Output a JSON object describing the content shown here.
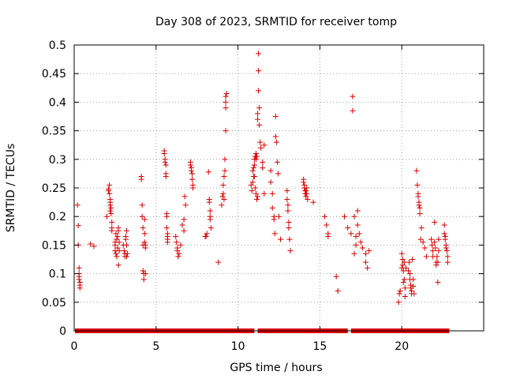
{
  "chart_data": {
    "type": "scatter",
    "title": "Day 308 of 2023, SRMTID for receiver tomp",
    "xlabel": "GPS time / hours",
    "ylabel": "SRMTID / TECUs",
    "xlim": [
      0,
      25
    ],
    "ylim": [
      0,
      0.5
    ],
    "xticks": [
      0,
      5,
      10,
      15,
      20
    ],
    "xtick_labels": [
      "0",
      "5",
      "10",
      "15",
      "20"
    ],
    "yticks": [
      0,
      0.05,
      0.1,
      0.15,
      0.2,
      0.25,
      0.3,
      0.35,
      0.4,
      0.45,
      0.5
    ],
    "ytick_labels": [
      "0",
      "0.05",
      "0.1",
      "0.15",
      "0.2",
      "0.25",
      "0.3",
      "0.35",
      "0.4",
      "0.45",
      "0.5"
    ],
    "grid": true,
    "marker": "+",
    "color": "#dd0000",
    "zero_baseline": {
      "x_start": 0.05,
      "x_end": 22.9,
      "gaps": [
        [
          11.0,
          11.2
        ],
        [
          16.7,
          16.9
        ]
      ]
    },
    "series": [
      {
        "name": "SRMTID",
        "x": [
          0.2,
          0.25,
          0.25,
          0.3,
          0.3,
          0.3,
          0.3,
          0.35,
          0.35,
          0.35,
          1.0,
          1.2,
          2.0,
          2.1,
          2.1,
          2.15,
          2.15,
          2.2,
          2.2,
          2.2,
          2.2,
          2.25,
          2.25,
          2.3,
          2.3,
          2.3,
          2.5,
          2.5,
          2.5,
          2.55,
          2.55,
          2.6,
          2.6,
          2.65,
          2.65,
          2.7,
          2.7,
          2.7,
          2.75,
          2.75,
          3.0,
          3.05,
          3.1,
          3.1,
          3.15,
          3.15,
          3.2,
          3.2,
          3.2,
          3.25,
          4.1,
          4.1,
          4.15,
          4.15,
          4.2,
          4.2,
          4.2,
          4.25,
          4.25,
          4.3,
          4.3,
          4.3,
          4.35,
          4.35,
          4.35,
          5.5,
          5.5,
          5.55,
          5.55,
          5.6,
          5.6,
          5.6,
          5.65,
          5.65,
          5.65,
          5.7,
          5.7,
          5.7,
          5.7,
          6.2,
          6.25,
          6.3,
          6.3,
          6.35,
          6.4,
          6.5,
          6.6,
          6.7,
          6.7,
          6.75,
          6.8,
          7.1,
          7.1,
          7.15,
          7.15,
          7.2,
          7.2,
          7.25,
          7.25,
          8.0,
          8.05,
          8.1,
          8.2,
          8.25,
          8.25,
          8.3,
          8.3,
          8.3,
          8.35,
          8.8,
          9.0,
          9.05,
          9.1,
          9.1,
          9.15,
          9.15,
          9.2,
          9.2,
          9.25,
          9.25,
          9.25,
          9.25,
          9.3,
          10.8,
          10.85,
          10.9,
          10.9,
          10.95,
          10.95,
          11.0,
          11.0,
          11.0,
          11.05,
          11.05,
          11.1,
          11.1,
          11.1,
          11.15,
          11.15,
          11.2,
          11.2,
          11.2,
          11.25,
          11.25,
          11.25,
          11.3,
          11.3,
          11.35,
          11.4,
          11.5,
          11.5,
          11.6,
          11.6,
          12.0,
          12.0,
          12.1,
          12.1,
          12.2,
          12.2,
          12.25,
          12.3,
          12.3,
          12.35,
          12.4,
          12.45,
          12.5,
          12.6,
          13.0,
          13.0,
          13.05,
          13.05,
          13.1,
          13.1,
          13.15,
          13.2,
          14.0,
          14.0,
          14.05,
          14.05,
          14.1,
          14.1,
          14.15,
          14.15,
          14.2,
          14.2,
          14.25,
          14.6,
          15.3,
          15.4,
          15.5,
          15.5,
          16.0,
          16.1,
          16.5,
          16.7,
          16.9,
          17.0,
          17.0,
          17.1,
          17.1,
          17.2,
          17.2,
          17.3,
          17.3,
          17.4,
          17.5,
          17.6,
          17.8,
          17.8,
          17.9,
          18.0,
          19.8,
          19.85,
          19.9,
          20.0,
          20.0,
          20.05,
          20.05,
          20.1,
          20.1,
          20.15,
          20.15,
          20.2,
          20.2,
          20.25,
          20.4,
          20.45,
          20.5,
          20.5,
          20.55,
          20.55,
          20.6,
          20.6,
          20.65,
          20.7,
          20.7,
          20.75,
          20.9,
          20.95,
          21.0,
          21.0,
          21.05,
          21.05,
          21.1,
          21.1,
          21.15,
          21.2,
          21.3,
          21.4,
          21.5,
          21.8,
          21.85,
          21.9,
          21.9,
          22.0,
          22.0,
          22.05,
          22.1,
          22.1,
          22.15,
          22.2,
          22.2,
          22.25,
          22.25,
          22.6,
          22.6,
          22.65,
          22.65,
          22.7,
          22.7,
          22.75,
          22.8,
          22.8
        ],
        "y": [
          0.22,
          0.184,
          0.15,
          0.11,
          0.1,
          0.095,
          0.09,
          0.085,
          0.08,
          0.075,
          0.152,
          0.148,
          0.2,
          0.248,
          0.245,
          0.255,
          0.24,
          0.23,
          0.225,
          0.22,
          0.21,
          0.215,
          0.205,
          0.19,
          0.18,
          0.175,
          0.155,
          0.15,
          0.14,
          0.17,
          0.135,
          0.16,
          0.13,
          0.165,
          0.145,
          0.18,
          0.175,
          0.115,
          0.155,
          0.14,
          0.15,
          0.14,
          0.135,
          0.13,
          0.165,
          0.16,
          0.175,
          0.15,
          0.13,
          0.135,
          0.27,
          0.265,
          0.22,
          0.2,
          0.18,
          0.15,
          0.105,
          0.1,
          0.09,
          0.195,
          0.17,
          0.155,
          0.15,
          0.145,
          0.1,
          0.315,
          0.31,
          0.3,
          0.295,
          0.29,
          0.275,
          0.27,
          0.205,
          0.2,
          0.18,
          0.17,
          0.16,
          0.155,
          0.165,
          0.165,
          0.155,
          0.145,
          0.14,
          0.13,
          0.135,
          0.15,
          0.185,
          0.175,
          0.195,
          0.235,
          0.22,
          0.295,
          0.29,
          0.285,
          0.28,
          0.275,
          0.265,
          0.255,
          0.25,
          0.165,
          0.165,
          0.17,
          0.278,
          0.23,
          0.225,
          0.21,
          0.2,
          0.195,
          0.18,
          0.12,
          0.22,
          0.235,
          0.255,
          0.24,
          0.23,
          0.27,
          0.28,
          0.3,
          0.35,
          0.39,
          0.4,
          0.41,
          0.415,
          0.255,
          0.245,
          0.26,
          0.28,
          0.27,
          0.285,
          0.27,
          0.29,
          0.3,
          0.305,
          0.25,
          0.31,
          0.3,
          0.24,
          0.305,
          0.23,
          0.38,
          0.37,
          0.235,
          0.485,
          0.455,
          0.42,
          0.39,
          0.36,
          0.33,
          0.32,
          0.295,
          0.285,
          0.325,
          0.24,
          0.28,
          0.26,
          0.24,
          0.215,
          0.2,
          0.195,
          0.17,
          0.375,
          0.34,
          0.33,
          0.295,
          0.275,
          0.2,
          0.16,
          0.245,
          0.23,
          0.22,
          0.21,
          0.19,
          0.18,
          0.16,
          0.14,
          0.265,
          0.26,
          0.255,
          0.25,
          0.245,
          0.24,
          0.235,
          0.245,
          0.25,
          0.24,
          0.23,
          0.225,
          0.2,
          0.185,
          0.17,
          0.165,
          0.095,
          0.07,
          0.2,
          0.18,
          0.17,
          0.41,
          0.385,
          0.135,
          0.2,
          0.165,
          0.15,
          0.185,
          0.21,
          0.17,
          0.155,
          0.145,
          0.135,
          0.12,
          0.11,
          0.14,
          0.05,
          0.065,
          0.07,
          0.11,
          0.135,
          0.125,
          0.115,
          0.105,
          0.085,
          0.12,
          0.09,
          0.075,
          0.06,
          0.11,
          0.105,
          0.12,
          0.1,
          0.09,
          0.08,
          0.075,
          0.07,
          0.065,
          0.125,
          0.09,
          0.078,
          0.065,
          0.28,
          0.255,
          0.24,
          0.235,
          0.225,
          0.22,
          0.215,
          0.205,
          0.16,
          0.18,
          0.155,
          0.145,
          0.13,
          0.16,
          0.15,
          0.14,
          0.13,
          0.19,
          0.155,
          0.145,
          0.12,
          0.115,
          0.13,
          0.085,
          0.12,
          0.16,
          0.14,
          0.185,
          0.17,
          0.165,
          0.16,
          0.15,
          0.145,
          0.14,
          0.13,
          0.12
        ]
      }
    ]
  }
}
